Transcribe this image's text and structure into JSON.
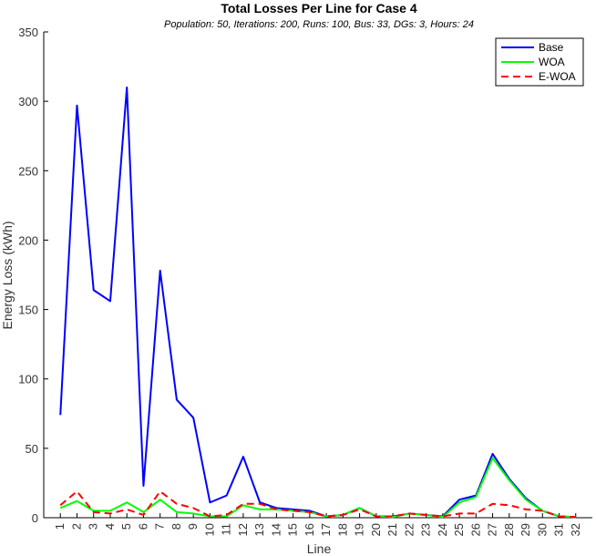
{
  "chart_data": {
    "type": "line",
    "title": "Total Losses Per Line for Case 4",
    "subtitle": "Population: 50, Iterations: 200, Runs: 100, Bus: 33, DGs: 3, Hours: 24",
    "xlabel": "Line",
    "ylabel": "Energy Loss (kWh)",
    "ylim": [
      0,
      350
    ],
    "xlim": [
      0,
      33
    ],
    "yticks": [
      0,
      50,
      100,
      150,
      200,
      250,
      300,
      350
    ],
    "x": [
      1,
      2,
      3,
      4,
      5,
      6,
      7,
      8,
      9,
      10,
      11,
      12,
      13,
      14,
      15,
      16,
      17,
      18,
      19,
      20,
      21,
      22,
      23,
      24,
      25,
      26,
      27,
      28,
      29,
      30,
      31,
      32
    ],
    "grid": false,
    "legend": "top-right",
    "series": [
      {
        "name": "Base",
        "color": "#0000ff",
        "dash": "solid",
        "values": [
          74,
          297,
          164,
          156,
          310,
          23,
          178,
          85,
          72,
          11,
          16,
          44,
          11,
          7,
          6,
          5,
          1,
          2,
          7,
          1,
          1,
          3,
          2,
          1,
          13,
          16,
          46,
          28,
          14,
          5,
          1,
          0.5
        ]
      },
      {
        "name": "WOA",
        "color": "#00ff00",
        "dash": "solid",
        "values": [
          7,
          12,
          5,
          5,
          11,
          4,
          13,
          4,
          3,
          1,
          1,
          9,
          6,
          6,
          5,
          4,
          1,
          2,
          7,
          1,
          0.5,
          3,
          2,
          0.5,
          11,
          15,
          43,
          27,
          13,
          5,
          1,
          0.5
        ]
      },
      {
        "name": "E-WOA",
        "color": "#ff0000",
        "dash": "dashed",
        "values": [
          9,
          19,
          4,
          3,
          6,
          2,
          19,
          10,
          7,
          1,
          2,
          10,
          10,
          6,
          5,
          4,
          1,
          2,
          6,
          1,
          1,
          3,
          2,
          1,
          3,
          3,
          10,
          9,
          6,
          5,
          1,
          0.5
        ]
      }
    ]
  }
}
